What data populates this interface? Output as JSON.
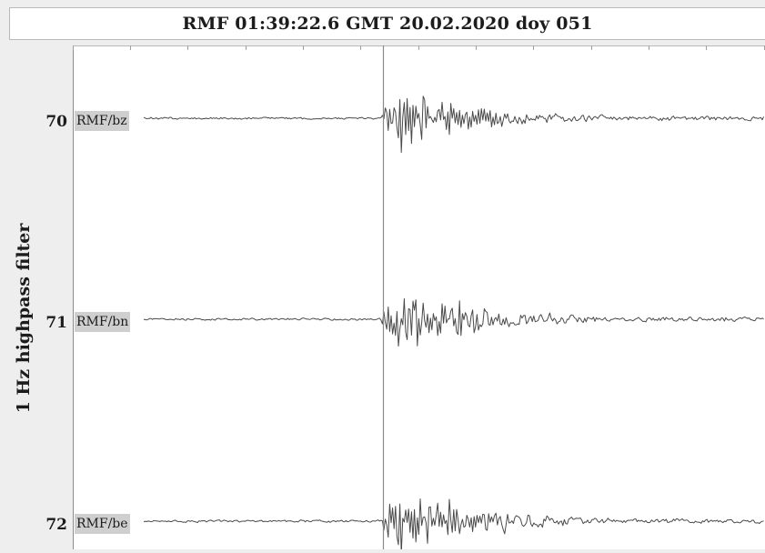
{
  "header": {
    "title": "RMF 01:39:22.6 GMT 20.02.2020 doy 051"
  },
  "chart_data": {
    "type": "line",
    "title": "RMF 01:39:22.6 GMT 20.02.2020 doy 051",
    "ylabel": "1 Hz highpass filter",
    "xlabel": "",
    "grid": false,
    "legend": "none",
    "marker_line": "vertical line at first P-wave arrival",
    "series": [
      {
        "number": "70",
        "name": "RMF/bz"
      },
      {
        "number": "71",
        "name": "RMF/bn"
      },
      {
        "number": "72",
        "name": "RMF/be"
      }
    ]
  },
  "colors": {
    "trace": "#4a4a4a",
    "axis": "#8c8c8c",
    "marker": "#8a8a8a",
    "label_bg": "#cfcfcf",
    "plot_bg": "#ffffff"
  }
}
